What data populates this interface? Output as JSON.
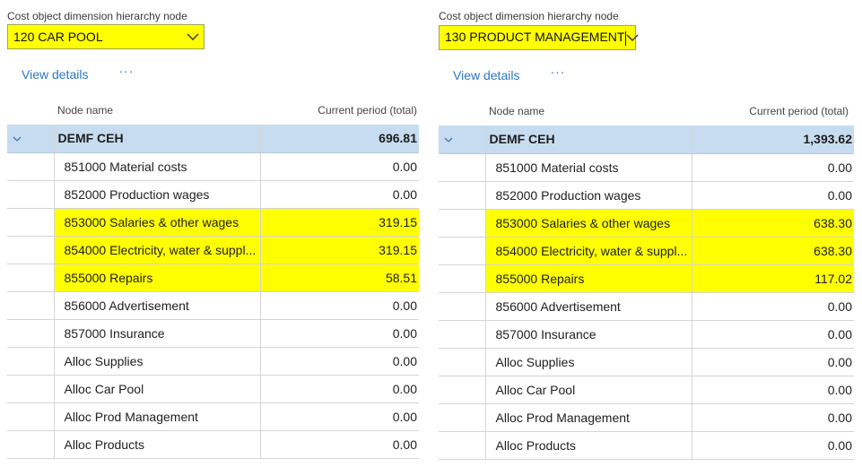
{
  "colors": {
    "highlight": "#ffff00",
    "root_row": "#c7dcf0",
    "link": "#2a77c4"
  },
  "left": {
    "field_label": "Cost object dimension hierarchy node",
    "dropdown_value": "120 CAR POOL",
    "view_details": "View details",
    "more": "···",
    "header_name": "Node name",
    "header_value": "Current period (total)",
    "root": {
      "name": "DEMF CEH",
      "value": "696.81"
    },
    "rows": [
      {
        "name": "851000 Material costs",
        "value": "0.00"
      },
      {
        "name": "852000 Production wages",
        "value": "0.00"
      },
      {
        "name": "853000 Salaries & other wages",
        "value": "319.15"
      },
      {
        "name": "854000 Electricity, water & suppl...",
        "value": "319.15"
      },
      {
        "name": "855000 Repairs",
        "value": "58.51"
      },
      {
        "name": "856000 Advertisement",
        "value": "0.00"
      },
      {
        "name": "857000 Insurance",
        "value": "0.00"
      },
      {
        "name": "Alloc Supplies",
        "value": "0.00"
      },
      {
        "name": "Alloc Car Pool",
        "value": "0.00"
      },
      {
        "name": "Alloc Prod Management",
        "value": "0.00"
      },
      {
        "name": "Alloc Products",
        "value": "0.00"
      }
    ]
  },
  "right": {
    "field_label": "Cost object dimension hierarchy node",
    "dropdown_value": "130 PRODUCT MANAGEMENT",
    "view_details": "View details",
    "more": "···",
    "header_name": "Node name",
    "header_value": "Current period (total)",
    "root": {
      "name": "DEMF CEH",
      "value": "1,393.62"
    },
    "rows": [
      {
        "name": "851000 Material costs",
        "value": "0.00"
      },
      {
        "name": "852000 Production wages",
        "value": "0.00"
      },
      {
        "name": "853000 Salaries & other wages",
        "value": "638.30"
      },
      {
        "name": "854000 Electricity, water & suppl...",
        "value": "638.30"
      },
      {
        "name": "855000 Repairs",
        "value": "117.02"
      },
      {
        "name": "856000 Advertisement",
        "value": "0.00"
      },
      {
        "name": "857000 Insurance",
        "value": "0.00"
      },
      {
        "name": "Alloc Supplies",
        "value": "0.00"
      },
      {
        "name": "Alloc Car Pool",
        "value": "0.00"
      },
      {
        "name": "Alloc Prod Management",
        "value": "0.00"
      },
      {
        "name": "Alloc Products",
        "value": "0.00"
      }
    ]
  }
}
